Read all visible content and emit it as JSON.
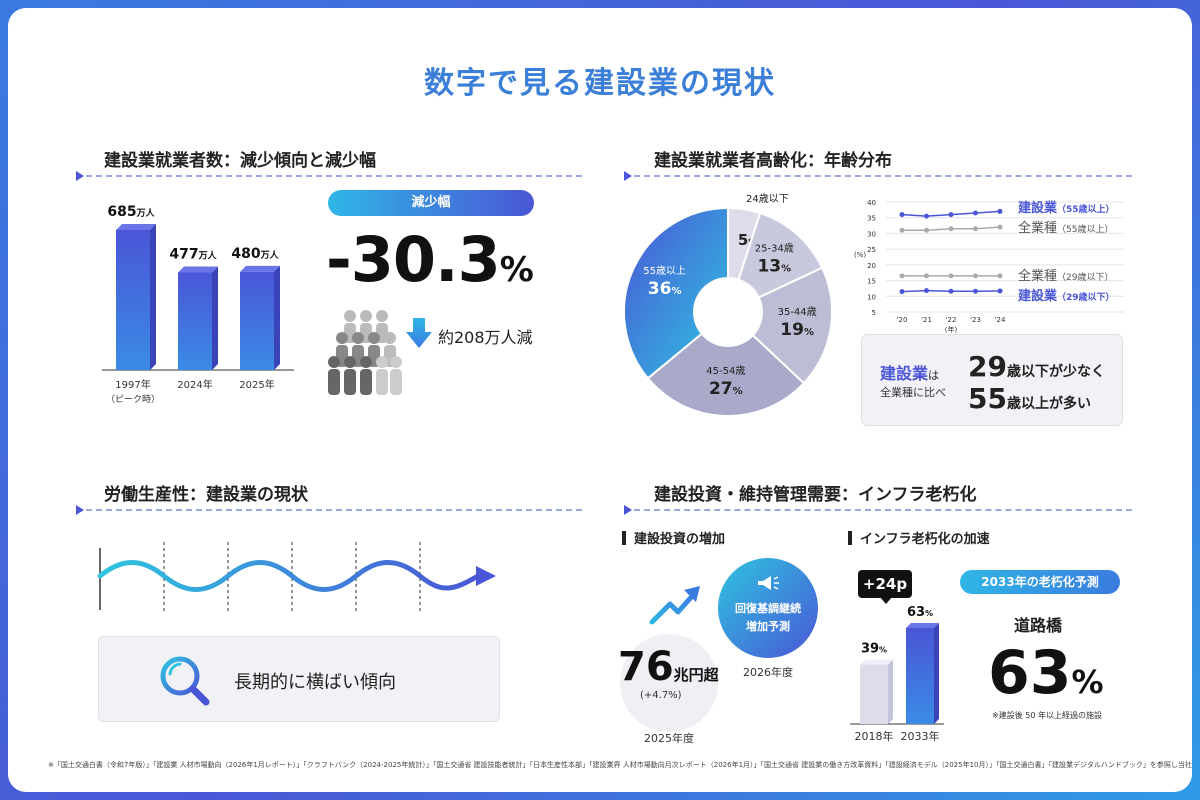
{
  "title": "数字で見る建設業の現状",
  "sec1": {
    "title": "建設業就業者数：減少傾向と減少幅",
    "bars": [
      {
        "value": "685",
        "unit": "万人",
        "label": "1997年",
        "sub": "（ピーク時）",
        "num": 685
      },
      {
        "value": "477",
        "unit": "万人",
        "label": "2024年",
        "sub": "",
        "num": 477
      },
      {
        "value": "480",
        "unit": "万人",
        "label": "2025年",
        "sub": "",
        "num": 480
      }
    ],
    "pill": "減少幅",
    "big": "-30.3",
    "big_unit": "%",
    "decline": "約208万人減"
  },
  "sec2": {
    "title": "建設業就業者高齢化：年齢分布",
    "pie": [
      {
        "label": "24歳以下",
        "value": "5",
        "num": 5,
        "color": "#dcdcea"
      },
      {
        "label": "25-34歳",
        "value": "13",
        "num": 13,
        "color": "#c9c9dd"
      },
      {
        "label": "35-44歳",
        "value": "19",
        "num": 19,
        "color": "#bdbdd6"
      },
      {
        "label": "45-54歳",
        "value": "27",
        "num": 27,
        "color": "#a9a9c9"
      },
      {
        "label": "55歳以上",
        "value": "36",
        "num": 36,
        "color": "#4a56d6"
      }
    ],
    "pct": "%",
    "line_axis": [
      "40",
      "35",
      "30",
      "25",
      "20",
      "15",
      "10",
      "5"
    ],
    "line_unit": "(%)",
    "line_x": [
      "'20",
      "'21",
      "'22",
      "'23",
      "'24"
    ],
    "line_xunit": "(年)",
    "series": [
      {
        "name": "建設業",
        "sub": "（55歳以上）",
        "values": [
          36,
          35.5,
          36,
          36.5,
          37
        ],
        "color": "#4a56d6"
      },
      {
        "name": "全業種",
        "sub": "（55歳以上）",
        "values": [
          31,
          31,
          31.5,
          31.5,
          32
        ],
        "color": "#aaaaaa"
      },
      {
        "name": "全業種",
        "sub": "（29歳以下）",
        "values": [
          16.5,
          16.5,
          16.5,
          16.5,
          16.5
        ],
        "color": "#aaaaaa"
      },
      {
        "name": "建設業",
        "sub": "（29歳以下）",
        "values": [
          11.5,
          11.8,
          11.6,
          11.6,
          11.7
        ],
        "color": "#4a56d6"
      }
    ],
    "compare_a": "建設業",
    "compare_b": "は",
    "compare_c": "全業種に比べ",
    "line1_num": "29",
    "line1_txt": "歳以下が少なく",
    "line2_num": "55",
    "line2_txt": "歳以上が多い"
  },
  "sec3": {
    "title": "労働生産性：建設業の現状",
    "box_text": "長期的に横ばい傾向"
  },
  "sec4": {
    "title": "建設投資・維持管理需要：インフラ老朽化",
    "sub1": "建設投資の増加",
    "sub2": "インフラ老朽化の加速",
    "circle_text1": "回復基調継続",
    "circle_text2": "増加予測",
    "circle_year": "2026年度",
    "inv_num": "76",
    "inv_unit": "兆円超",
    "inv_change": "(+4.7%)",
    "inv_year": "2025年度",
    "badge": "+24p",
    "bar_a_val": "39",
    "bar_a_year": "2018年",
    "bar_a_num": 39,
    "bar_b_val": "63",
    "bar_b_year": "2033年",
    "bar_b_num": 63,
    "forecast_pill": "2033年の老朽化予測",
    "bridge_label": "道路橋",
    "bridge_num": "63",
    "bridge_unit": "%",
    "bridge_note": "※建設後 50 年以上経過の施設"
  },
  "footer": "※「国土交通白書（令和7年版）」「建設業 人材市場動向（2026年1月レポート）」「クラフトバンク（2024-2025年統計）」「国土交通省 建設技能者統計」「日本生産性本部」「建設業界 人材市場動向月次レポート（2026年1月）」「国土交通省 建設業の働き方改革資料」「建設経済モデル（2025年10月）」「国土交通白書」「建設業デジタルハンドブック」を参照し当社作成"
}
